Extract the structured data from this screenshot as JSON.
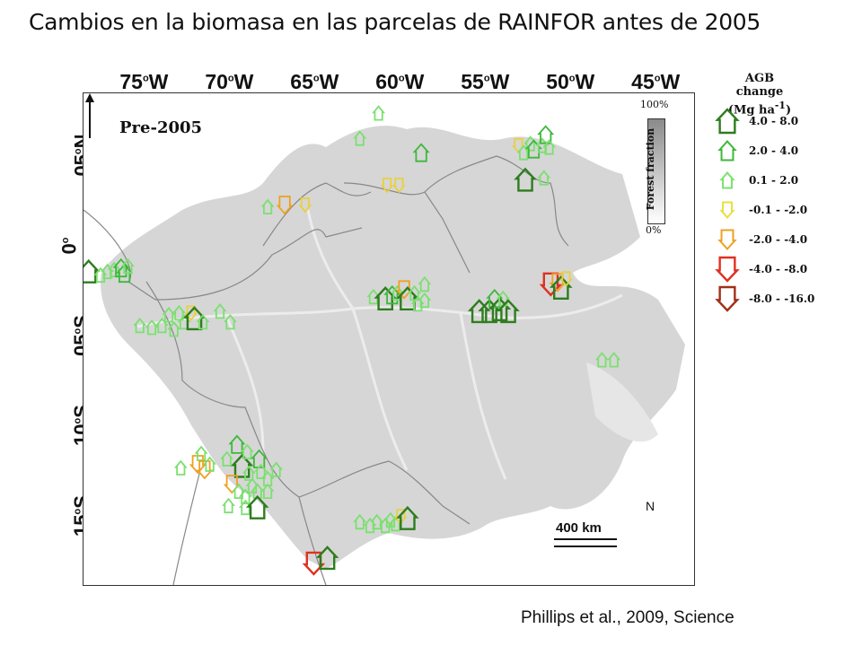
{
  "title": "Cambios en la biomasa en las parcelas de RAINFOR antes de 2005",
  "citation": "Phillips et al., 2009, Science",
  "map": {
    "period_label": "Pre-2005",
    "longitude_labels": [
      {
        "deg": "75",
        "hem": "W"
      },
      {
        "deg": "70",
        "hem": "W"
      },
      {
        "deg": "65",
        "hem": "W"
      },
      {
        "deg": "60",
        "hem": "W"
      },
      {
        "deg": "55",
        "hem": "W"
      },
      {
        "deg": "50",
        "hem": "W"
      },
      {
        "deg": "45",
        "hem": "W"
      }
    ],
    "latitude_labels": [
      {
        "deg": "05",
        "hem": "N"
      },
      {
        "deg": "0",
        "hem": ""
      },
      {
        "deg": "05",
        "hem": "S"
      },
      {
        "deg": "10",
        "hem": "S"
      },
      {
        "deg": "15",
        "hem": "S"
      }
    ],
    "forest_fraction": {
      "label": "Forest fraction",
      "top": "100%",
      "bottom": "0%"
    },
    "scale_bar": "400 km",
    "north_label": "N"
  },
  "legend": {
    "title_line1": "AGB change",
    "title_line2": "(Mg ha",
    "title_sup": "-1",
    "title_close": ")",
    "items": [
      {
        "range": "4.0 - 8.0",
        "direction": "up",
        "color": "#2e7d1e",
        "size": "large"
      },
      {
        "range": "2.0 - 4.0",
        "direction": "up",
        "color": "#3db83a",
        "size": "medium"
      },
      {
        "range": "0.1 - 2.0",
        "direction": "up",
        "color": "#7be070",
        "size": "small"
      },
      {
        "range": "-0.1 - -2.0",
        "direction": "down",
        "color": "#e8e040",
        "size": "small"
      },
      {
        "range": "-2.0 - -4.0",
        "direction": "down",
        "color": "#f0a020",
        "size": "medium"
      },
      {
        "range": "-4.0 - -8.0",
        "direction": "down",
        "color": "#e03020",
        "size": "large"
      },
      {
        "range": "-8.0 - -16.0",
        "direction": "down",
        "color": "#a03018",
        "size": "large"
      }
    ]
  },
  "colors": {
    "forest": "#d6d6d6",
    "nonforest": "#ffffff",
    "border": "#888888",
    "river": "#ececec"
  },
  "plots": [
    {
      "lon": -78.3,
      "lat": -1.4,
      "change": 5.0
    },
    {
      "lon": -77.6,
      "lat": -1.6,
      "change": 1.0
    },
    {
      "lon": -77.2,
      "lat": -1.4,
      "change": 1.5
    },
    {
      "lon": -76.8,
      "lat": -1.3,
      "change": 1.0
    },
    {
      "lon": -76.4,
      "lat": -1.2,
      "change": 2.5
    },
    {
      "lon": -76.2,
      "lat": -1.5,
      "change": 3.0
    },
    {
      "lon": -76.0,
      "lat": -1.1,
      "change": 1.0
    },
    {
      "lon": -75.3,
      "lat": -4.4,
      "change": 1.0
    },
    {
      "lon": -74.6,
      "lat": -4.5,
      "change": 1.0
    },
    {
      "lon": -74.0,
      "lat": -4.4,
      "change": 1.0
    },
    {
      "lon": -73.6,
      "lat": -3.8,
      "change": 1.0
    },
    {
      "lon": -73.3,
      "lat": -4.6,
      "change": 1.0
    },
    {
      "lon": -73.0,
      "lat": -3.7,
      "change": 1.5
    },
    {
      "lon": -72.7,
      "lat": -4.2,
      "change": 1.0
    },
    {
      "lon": -72.3,
      "lat": -3.7,
      "change": -1.0
    },
    {
      "lon": -72.1,
      "lat": -4.0,
      "change": 5.0
    },
    {
      "lon": -71.6,
      "lat": -4.2,
      "change": 1.0
    },
    {
      "lon": -70.6,
      "lat": -3.6,
      "change": 1.0
    },
    {
      "lon": -70.0,
      "lat": -4.2,
      "change": 1.0
    },
    {
      "lon": -67.8,
      "lat": 2.2,
      "change": 1.0
    },
    {
      "lon": -66.8,
      "lat": 2.3,
      "change": -3.0
    },
    {
      "lon": -65.6,
      "lat": 2.3,
      "change": -1.5
    },
    {
      "lon": -61.3,
      "lat": 7.4,
      "change": 1.0
    },
    {
      "lon": -62.4,
      "lat": 6.0,
      "change": 1.0
    },
    {
      "lon": -60.8,
      "lat": 3.4,
      "change": -1.0
    },
    {
      "lon": -60.1,
      "lat": 3.4,
      "change": -1.0
    },
    {
      "lon": -58.8,
      "lat": 5.2,
      "change": 2.5
    },
    {
      "lon": -61.6,
      "lat": -2.8,
      "change": 1.0
    },
    {
      "lon": -60.9,
      "lat": -2.9,
      "change": 5.0
    },
    {
      "lon": -60.5,
      "lat": -2.7,
      "change": 3.0
    },
    {
      "lon": -60.2,
      "lat": -2.6,
      "change": 1.0
    },
    {
      "lon": -59.8,
      "lat": -2.4,
      "change": -2.5
    },
    {
      "lon": -59.6,
      "lat": -2.9,
      "change": 5.0
    },
    {
      "lon": -59.2,
      "lat": -2.6,
      "change": 1.0
    },
    {
      "lon": -59.0,
      "lat": -3.2,
      "change": 1.0
    },
    {
      "lon": -58.6,
      "lat": -2.1,
      "change": 1.0
    },
    {
      "lon": -58.6,
      "lat": -3.0,
      "change": 1.0
    },
    {
      "lon": -55.4,
      "lat": -3.6,
      "change": 5.0
    },
    {
      "lon": -54.8,
      "lat": -3.6,
      "change": 5.0
    },
    {
      "lon": -54.5,
      "lat": -2.9,
      "change": 2.5
    },
    {
      "lon": -54.2,
      "lat": -3.5,
      "change": 5.0
    },
    {
      "lon": -54.0,
      "lat": -2.9,
      "change": 1.0
    },
    {
      "lon": -53.7,
      "lat": -3.6,
      "change": 5.0
    },
    {
      "lon": -53.1,
      "lat": 5.6,
      "change": -1.0
    },
    {
      "lon": -52.8,
      "lat": 5.2,
      "change": 1.0
    },
    {
      "lon": -52.4,
      "lat": 5.7,
      "change": 1.5
    },
    {
      "lon": -52.2,
      "lat": 5.4,
      "change": 3.0
    },
    {
      "lon": -51.7,
      "lat": 5.6,
      "change": 1.0
    },
    {
      "lon": -51.5,
      "lat": 6.2,
      "change": 2.5
    },
    {
      "lon": -51.3,
      "lat": 5.5,
      "change": 1.0
    },
    {
      "lon": -52.7,
      "lat": 3.7,
      "change": 5.0
    },
    {
      "lon": -51.6,
      "lat": 3.8,
      "change": 1.0
    },
    {
      "lon": -51.2,
      "lat": -2.1,
      "change": -6.0
    },
    {
      "lon": -50.8,
      "lat": -2.0,
      "change": -3.0
    },
    {
      "lon": -50.6,
      "lat": -2.3,
      "change": 5.0
    },
    {
      "lon": -50.3,
      "lat": -1.8,
      "change": -1.0
    },
    {
      "lon": -48.2,
      "lat": -6.3,
      "change": 1.0
    },
    {
      "lon": -47.5,
      "lat": -6.3,
      "change": 1.0
    },
    {
      "lon": -71.9,
      "lat": -12.1,
      "change": -2.5
    },
    {
      "lon": -71.7,
      "lat": -11.5,
      "change": 1.5
    },
    {
      "lon": -71.5,
      "lat": -12.4,
      "change": -2.5
    },
    {
      "lon": -72.9,
      "lat": -12.3,
      "change": 1.0
    },
    {
      "lon": -71.2,
      "lat": -12.1,
      "change": 1.0
    },
    {
      "lon": -70.2,
      "lat": -11.8,
      "change": 1.0
    },
    {
      "lon": -69.6,
      "lat": -11.0,
      "change": 2.5
    },
    {
      "lon": -69.3,
      "lat": -12.2,
      "change": 5.0
    },
    {
      "lon": -68.9,
      "lat": -12.6,
      "change": 1.0
    },
    {
      "lon": -69.0,
      "lat": -11.4,
      "change": 1.0
    },
    {
      "lon": -68.3,
      "lat": -11.8,
      "change": 2.5
    },
    {
      "lon": -68.2,
      "lat": -12.5,
      "change": 1.0
    },
    {
      "lon": -67.8,
      "lat": -12.9,
      "change": 1.0
    },
    {
      "lon": -69.9,
      "lat": -13.2,
      "change": -2.5
    },
    {
      "lon": -69.5,
      "lat": -13.6,
      "change": 1.0
    },
    {
      "lon": -69.1,
      "lat": -13.9,
      "change": 1.5
    },
    {
      "lon": -68.7,
      "lat": -13.3,
      "change": 1.0
    },
    {
      "lon": -68.4,
      "lat": -13.6,
      "change": 1.0
    },
    {
      "lon": -67.8,
      "lat": -13.6,
      "change": 1.0
    },
    {
      "lon": -67.3,
      "lat": -12.4,
      "change": 1.0
    },
    {
      "lon": -70.1,
      "lat": -14.4,
      "change": 1.0
    },
    {
      "lon": -69.1,
      "lat": -14.5,
      "change": 1.0
    },
    {
      "lon": -68.4,
      "lat": -14.5,
      "change": 5.0
    },
    {
      "lon": -65.1,
      "lat": -17.6,
      "change": -6.0
    },
    {
      "lon": -64.3,
      "lat": -17.3,
      "change": 5.0
    },
    {
      "lon": -62.4,
      "lat": -15.3,
      "change": 1.0
    },
    {
      "lon": -61.8,
      "lat": -15.5,
      "change": 1.0
    },
    {
      "lon": -61.4,
      "lat": -15.3,
      "change": 1.0
    },
    {
      "lon": -60.9,
      "lat": -15.5,
      "change": 1.0
    },
    {
      "lon": -60.6,
      "lat": -15.2,
      "change": 1.0
    },
    {
      "lon": -60.3,
      "lat": -15.4,
      "change": 1.0
    },
    {
      "lon": -60.0,
      "lat": -15.0,
      "change": -1.0
    },
    {
      "lon": -59.6,
      "lat": -15.1,
      "change": 5.0
    }
  ]
}
